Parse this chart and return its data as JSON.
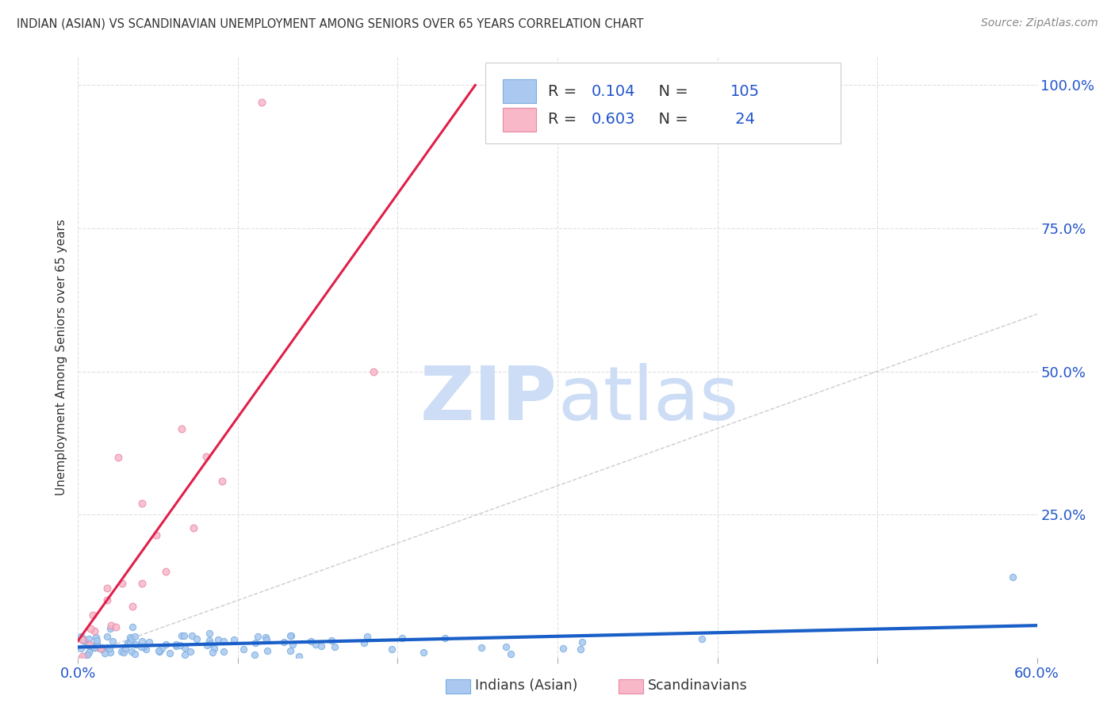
{
  "title": "INDIAN (ASIAN) VS SCANDINAVIAN UNEMPLOYMENT AMONG SENIORS OVER 65 YEARS CORRELATION CHART",
  "source": "Source: ZipAtlas.com",
  "ylabel": "Unemployment Among Seniors over 65 years",
  "xlim": [
    0.0,
    0.6
  ],
  "ylim": [
    0.0,
    1.05
  ],
  "indian_color": "#aac8f0",
  "indian_edge_color": "#7aaee0",
  "scand_color": "#f8b8c8",
  "scand_edge_color": "#e888a8",
  "trend_indian_color": "#1a5fc8",
  "trend_scand_color": "#e0204a",
  "legend_R_color": "#2255cc",
  "legend_N_color": "#2255cc",
  "legend_R_indian": "0.104",
  "legend_N_indian": "105",
  "legend_R_scand": "0.603",
  "legend_N_scand": "24",
  "watermark_color": "#ccddf5",
  "background_color": "#ffffff",
  "grid_color": "#dddddd",
  "tick_color": "#2255cc",
  "title_color": "#333333",
  "source_color": "#888888",
  "ylabel_color": "#333333"
}
